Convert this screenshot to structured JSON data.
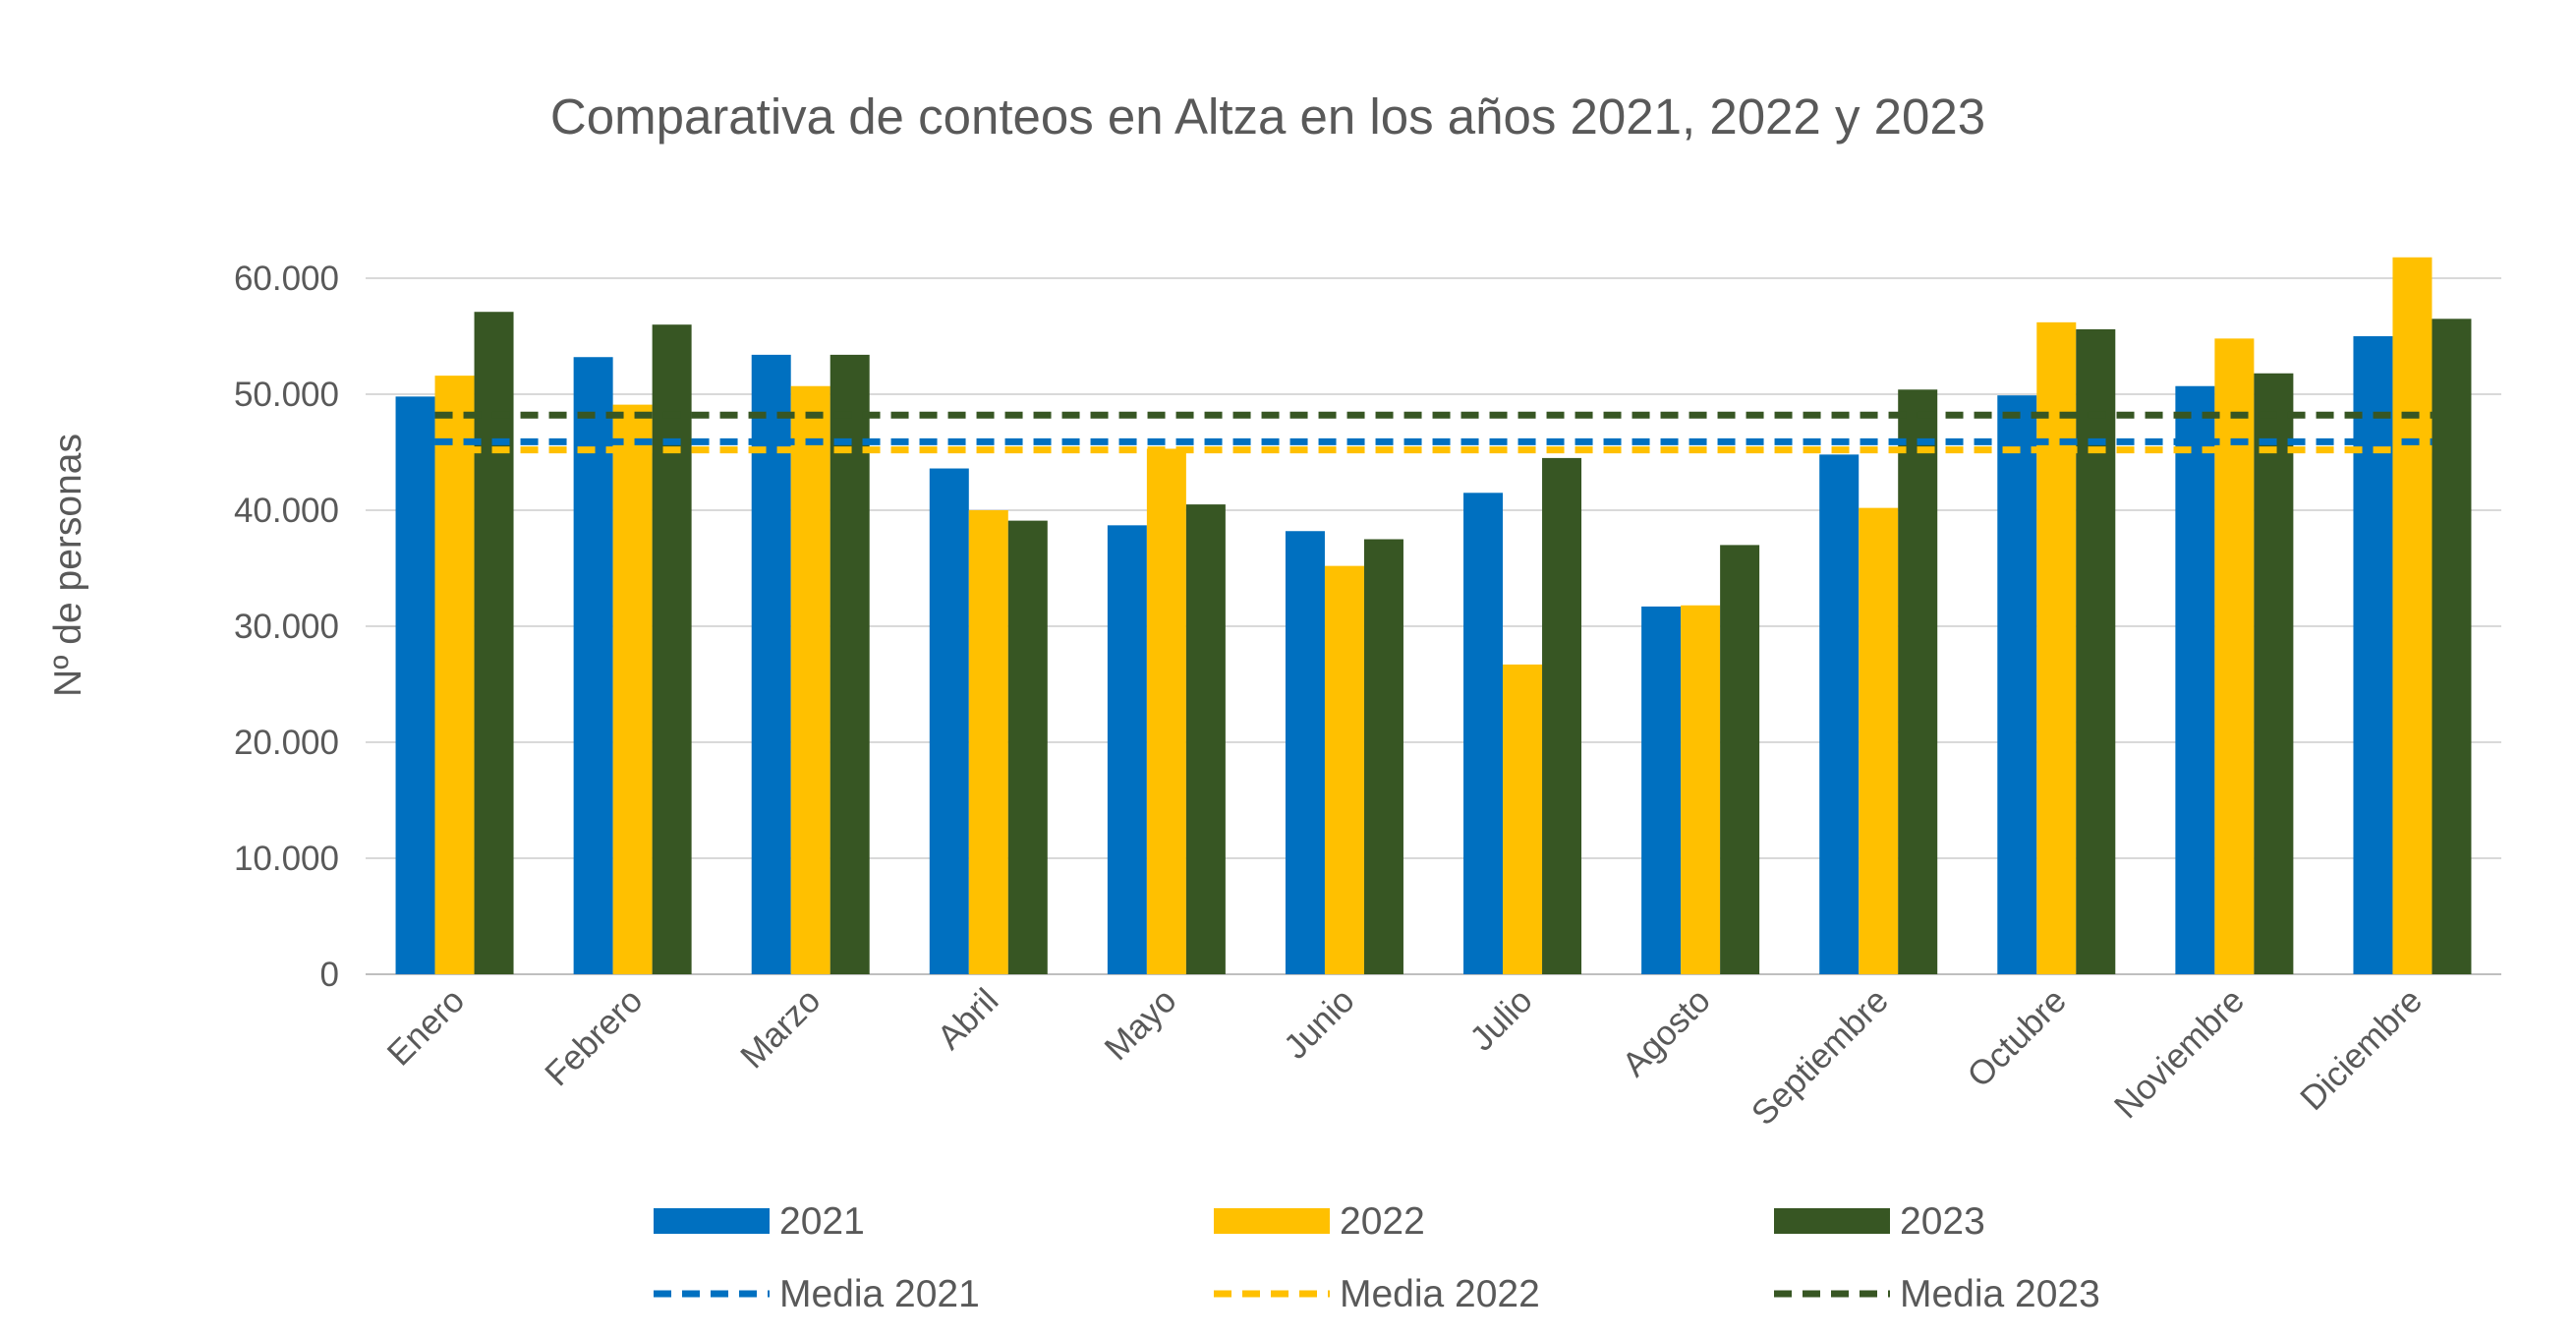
{
  "chart_data": {
    "type": "bar",
    "title": "Comparativa de conteos en Altza en los años 2021, 2022 y 2023",
    "xlabel": "",
    "ylabel": "Nº de personas",
    "ylim": [
      0,
      60000
    ],
    "yticks": [
      0,
      10000,
      20000,
      30000,
      40000,
      50000,
      60000
    ],
    "ytick_labels": [
      "0",
      "10.000",
      "20.000",
      "30.000",
      "40.000",
      "50.000",
      "60.000"
    ],
    "categories": [
      "Enero",
      "Febrero",
      "Marzo",
      "Abril",
      "Mayo",
      "Junio",
      "Julio",
      "Agosto",
      "Septiembre",
      "Octubre",
      "Noviembre",
      "Diciembre"
    ],
    "series": [
      {
        "name": "2021",
        "color": "#0070C0",
        "values": [
          49800,
          53200,
          53400,
          43600,
          38700,
          38200,
          41500,
          31700,
          44800,
          49900,
          50700,
          55000
        ]
      },
      {
        "name": "2022",
        "color": "#FFC000",
        "values": [
          51600,
          49100,
          50700,
          40000,
          45300,
          35200,
          26700,
          31800,
          40200,
          56200,
          54800,
          61800
        ]
      },
      {
        "name": "2023",
        "color": "#375623",
        "values": [
          57100,
          56000,
          53400,
          39100,
          40500,
          37500,
          44500,
          37000,
          50400,
          55600,
          51800,
          56500
        ]
      }
    ],
    "reference_lines": [
      {
        "name": "Media 2021",
        "color": "#0070C0",
        "value": 45900,
        "style": "dashed"
      },
      {
        "name": "Media 2022",
        "color": "#FFC000",
        "value": 45200,
        "style": "dashed"
      },
      {
        "name": "Media 2023",
        "color": "#375623",
        "value": 48200,
        "style": "dashed"
      }
    ],
    "grid": true,
    "legend_position": "bottom"
  }
}
